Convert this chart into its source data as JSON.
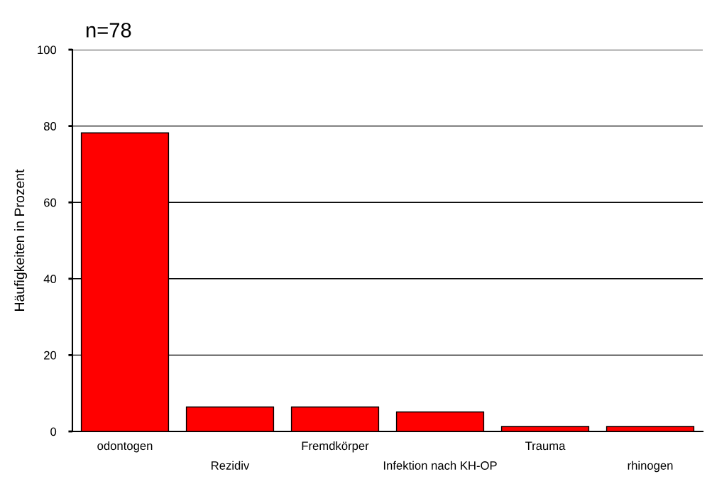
{
  "chart_data": {
    "type": "bar",
    "title": "n=78",
    "ylabel": "Häufigkeiten in Prozent",
    "categories": [
      "odontogen",
      "Rezidiv",
      "Fremdkörper",
      "Infektion nach KH-OP",
      "Trauma",
      "rhinogen"
    ],
    "values": [
      78.2,
      6.4,
      6.4,
      5.1,
      1.3,
      1.3
    ],
    "color": "#ff0000",
    "ylim": [
      0,
      100
    ],
    "yticks": [
      0,
      20,
      40,
      60,
      80,
      100
    ],
    "grid": "y"
  }
}
